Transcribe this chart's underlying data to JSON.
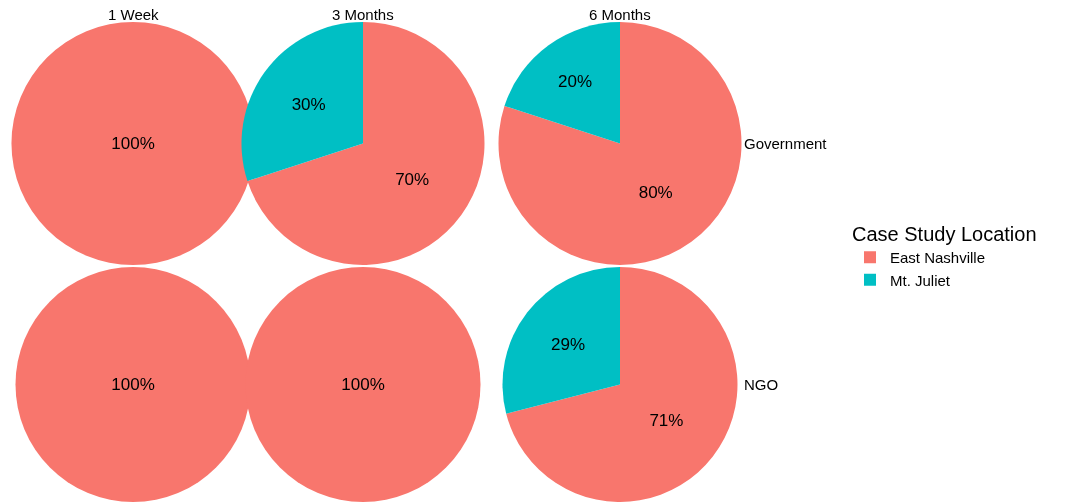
{
  "chart_data": [
    {
      "type": "pie",
      "title": "1 Week",
      "categories": [
        null
      ],
      "values": [
        100
      ],
      "colors": [
        "#f8766d"
      ],
      "value_labels": [
        "100%"
      ]
    },
    {
      "type": "pie",
      "title": "3 Months",
      "categories": [
        "East Nashville",
        "Mt. Juliet"
      ],
      "values": [
        70,
        30
      ],
      "colors": [
        "#f8766d",
        "#00bfc4"
      ],
      "value_labels": [
        "70%",
        "30%"
      ],
      "legend": "right",
      "legend_title": "Case Study Location"
    },
    {
      "type": "pie",
      "title": "6 Months",
      "categories": [
        null,
        null
      ],
      "values": [
        80,
        20
      ],
      "colors": [
        "#f8766d",
        "#00bfc4"
      ],
      "value_labels": [
        "80%",
        "20%"
      ],
      "annotations": [
        "Government"
      ]
    },
    {
      "type": "pie",
      "categories": [
        null
      ],
      "values": [
        100
      ],
      "colors": [
        "#f8766d"
      ],
      "value_labels": [
        "100%"
      ]
    },
    {
      "type": "pie",
      "categories": [
        null
      ],
      "values": [
        100
      ],
      "colors": [
        "#f8766d"
      ],
      "value_labels": [
        "100%"
      ]
    },
    {
      "type": "pie",
      "categories": [
        null,
        null
      ],
      "values": [
        71,
        29
      ],
      "colors": [
        "#f8766d",
        "#00bfc4"
      ],
      "value_labels": [
        "71%",
        "29%"
      ],
      "annotations": [
        "NGO"
      ]
    }
  ]
}
